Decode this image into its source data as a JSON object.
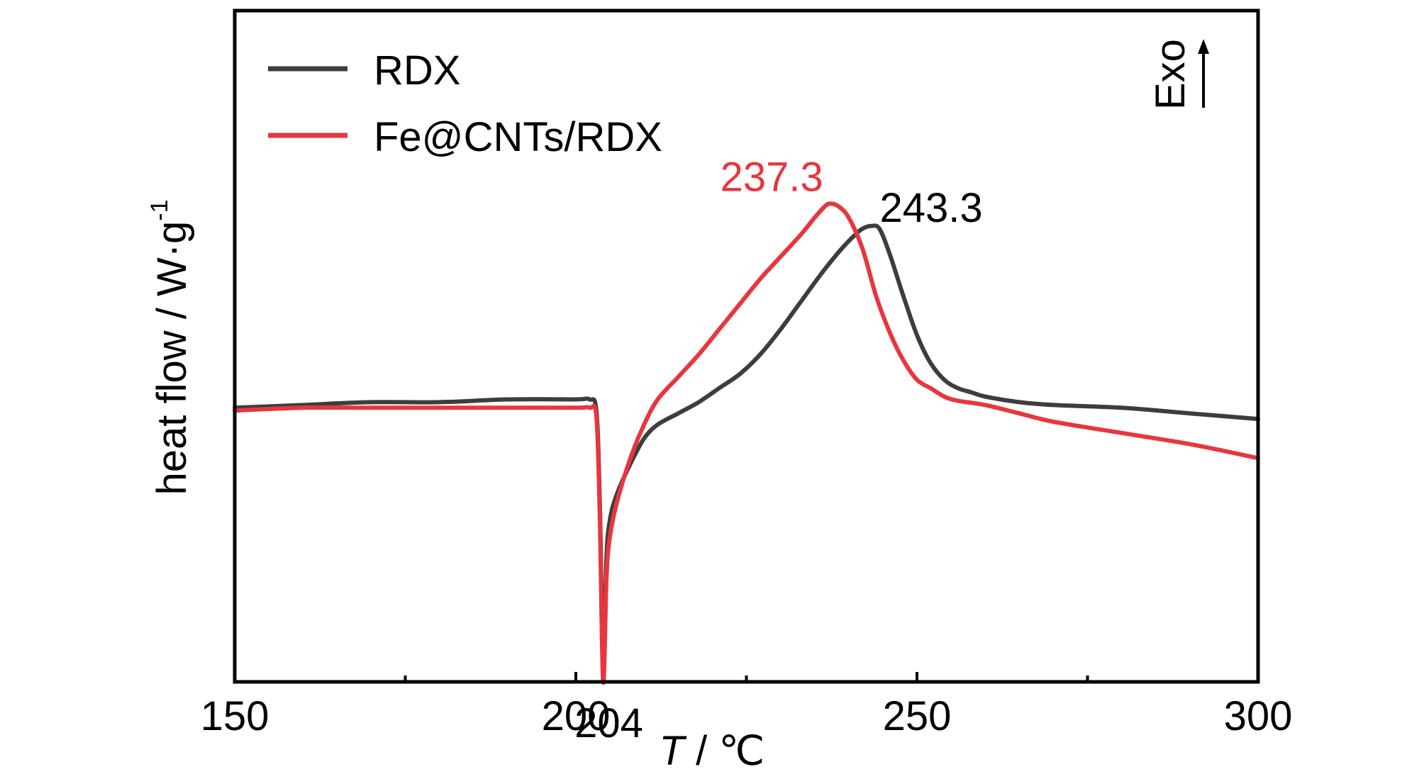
{
  "chart_data": {
    "type": "line",
    "title": "",
    "xlabel": {
      "symbol": "T",
      "unit": " / ℃"
    },
    "ylabel": {
      "text": "heat flow / W·g",
      "superscript": "-1"
    },
    "xlim": [
      150,
      300
    ],
    "xticks": [
      150,
      200,
      250,
      300
    ],
    "xticks_minor": [
      175,
      225,
      275
    ],
    "ylim": [
      -1.0,
      1.4
    ],
    "y_ticks_shown": false,
    "grid": false,
    "legend_position": "top-left",
    "direction_marker": {
      "label": "Exo",
      "arrow": "up"
    },
    "colors": {
      "RDX": "#3d3d3d",
      "Fe@CNTs/RDX": "#e8363e",
      "axis": "#000000"
    },
    "series": [
      {
        "name": "RDX",
        "color": "#3d3d3d",
        "x": [
          150,
          160,
          170,
          180,
          190,
          200,
          202,
          203,
          203.5,
          204,
          204.5,
          205,
          206,
          208,
          210,
          212,
          215,
          218,
          221,
          224,
          227,
          230,
          233,
          236,
          239,
          241,
          242,
          243.3,
          244.5,
          246,
          248,
          250,
          252,
          254,
          256,
          258,
          260,
          265,
          270,
          280,
          290,
          300
        ],
        "y": [
          -0.02,
          -0.01,
          0.0,
          0.0,
          0.01,
          0.01,
          0.01,
          -0.03,
          -0.35,
          -0.92,
          -0.55,
          -0.42,
          -0.33,
          -0.22,
          -0.13,
          -0.08,
          -0.04,
          0.0,
          0.05,
          0.1,
          0.17,
          0.26,
          0.36,
          0.46,
          0.55,
          0.6,
          0.62,
          0.63,
          0.62,
          0.53,
          0.38,
          0.24,
          0.14,
          0.08,
          0.05,
          0.035,
          0.02,
          0.0,
          -0.01,
          -0.02,
          -0.04,
          -0.06
        ]
      },
      {
        "name": "Fe@CNTs/RDX",
        "color": "#e8363e",
        "x": [
          150,
          160,
          170,
          180,
          190,
          200,
          202,
          203,
          203.5,
          204,
          204.5,
          205,
          206,
          208,
          210,
          212,
          215,
          218,
          221,
          224,
          227,
          230,
          233,
          235,
          236.5,
          237.3,
          238.5,
          240,
          242,
          244,
          246,
          248,
          250,
          252,
          254,
          256,
          260,
          265,
          270,
          280,
          290,
          300
        ],
        "y": [
          -0.03,
          -0.02,
          -0.02,
          -0.02,
          -0.02,
          -0.02,
          -0.02,
          -0.05,
          -0.4,
          -1.0,
          -0.62,
          -0.48,
          -0.36,
          -0.2,
          -0.08,
          0.01,
          0.09,
          0.17,
          0.26,
          0.35,
          0.44,
          0.52,
          0.6,
          0.66,
          0.7,
          0.71,
          0.7,
          0.66,
          0.55,
          0.38,
          0.25,
          0.15,
          0.08,
          0.05,
          0.02,
          0.005,
          -0.01,
          -0.04,
          -0.07,
          -0.11,
          -0.15,
          -0.2
        ]
      }
    ],
    "annotations": [
      {
        "text": "204",
        "x": 204,
        "y": -1.0,
        "color": "#000000"
      },
      {
        "text": "237.3",
        "x": 237.3,
        "y": 0.71,
        "color": "#e8363e"
      },
      {
        "text": "243.3",
        "x": 243.3,
        "y": 0.63,
        "color": "#000000"
      }
    ]
  }
}
